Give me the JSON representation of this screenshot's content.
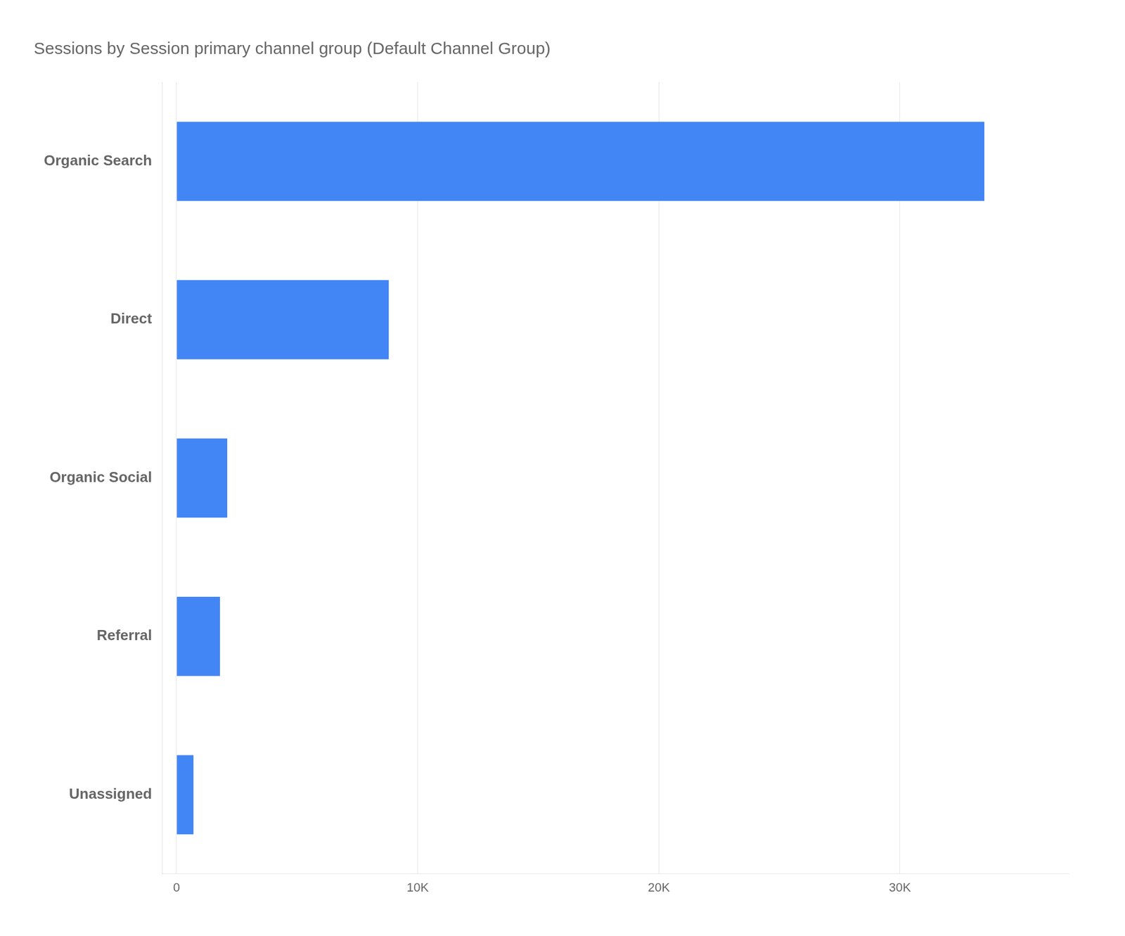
{
  "chart_data": {
    "type": "bar",
    "orientation": "horizontal",
    "title": "Sessions by Session primary channel group (Default Channel Group)",
    "categories": [
      "Organic Search",
      "Direct",
      "Organic Social",
      "Referral",
      "Unassigned"
    ],
    "values": [
      33500,
      8800,
      2100,
      1800,
      700
    ],
    "color": "#4285f4",
    "xlim": [
      -600,
      37000
    ],
    "xticks": [
      0,
      {
        "value": 10000,
        "label": "10K"
      },
      {
        "value": 20000,
        "label": "20K"
      },
      {
        "value": 30000,
        "label": "30K"
      }
    ],
    "grid": true
  }
}
